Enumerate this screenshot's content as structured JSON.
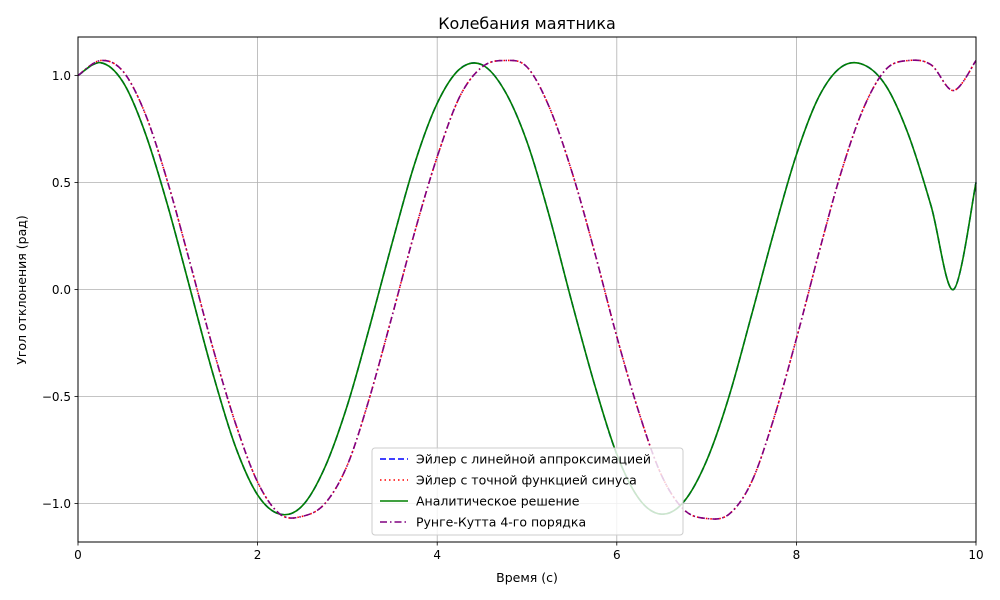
{
  "chart_data": {
    "type": "line",
    "title": "Колебания маятника",
    "xlabel": "Время (с)",
    "ylabel": "Угол отклонения (рад)",
    "xlim": [
      0,
      10
    ],
    "ylim": [
      -1.18,
      1.18
    ],
    "grid": true,
    "legend_position": "bottom-center",
    "x_ticks": [
      0,
      2,
      4,
      6,
      8,
      10
    ],
    "x_tick_labels": [
      "0",
      "2",
      "4",
      "6",
      "8",
      "10"
    ],
    "y_ticks": [
      1.0,
      0.5,
      0.0,
      -0.5,
      -1.0
    ],
    "y_tick_labels": [
      "1.0",
      "0.5",
      "0.0",
      "−0.5",
      "−1.0"
    ],
    "series": [
      {
        "name": "Эйлер с линейной аппроксимацией",
        "color": "#0000ff",
        "style": "dashed",
        "x": [
          0,
          0.25,
          0.5,
          0.75,
          1,
          1.25,
          1.5,
          1.75,
          2,
          2.25,
          2.5,
          2.75,
          3,
          3.25,
          3.5,
          3.75,
          4,
          4.25,
          4.5,
          4.75,
          5,
          5.25,
          5.5,
          5.75,
          6,
          6.25,
          6.5,
          6.75,
          7,
          7.25,
          7.5,
          7.75,
          8,
          8.25,
          8.5,
          8.75,
          9,
          9.25,
          9.5,
          9.75,
          10
        ],
        "y": [
          1.0,
          1.06,
          0.97,
          0.73,
          0.39,
          0.0,
          -0.39,
          -0.73,
          -0.96,
          -1.05,
          -1.01,
          -0.83,
          -0.54,
          -0.17,
          0.22,
          0.59,
          0.87,
          1.03,
          1.05,
          0.93,
          0.69,
          0.34,
          -0.06,
          -0.44,
          -0.77,
          -0.98,
          -1.05,
          -0.99,
          -0.8,
          -0.5,
          -0.12,
          0.27,
          0.63,
          0.9,
          1.04,
          1.05,
          0.95,
          0.72,
          0.39,
          0.0,
          0.5
        ]
      },
      {
        "name": "Эйлер с точной функцией синуса",
        "color": "#ff0000",
        "style": "dotted",
        "x": [
          0,
          0.25,
          0.5,
          0.75,
          1,
          1.25,
          1.5,
          1.75,
          2,
          2.25,
          2.5,
          2.75,
          3,
          3.25,
          3.5,
          3.75,
          4,
          4.25,
          4.5,
          4.75,
          5,
          5.25,
          5.5,
          5.75,
          6,
          6.25,
          6.5,
          6.75,
          7,
          7.25,
          7.5,
          7.75,
          8,
          8.25,
          8.5,
          8.75,
          9,
          9.25,
          9.5,
          9.75,
          10
        ],
        "y": [
          1.0,
          1.07,
          1.02,
          0.82,
          0.5,
          0.12,
          -0.27,
          -0.62,
          -0.9,
          -1.05,
          -1.06,
          -1.0,
          -0.82,
          -0.5,
          -0.12,
          0.27,
          0.62,
          0.9,
          1.04,
          1.07,
          1.04,
          0.85,
          0.55,
          0.18,
          -0.22,
          -0.58,
          -0.87,
          -1.03,
          -1.07,
          -1.05,
          -0.9,
          -0.6,
          -0.23,
          0.17,
          0.55,
          0.85,
          1.03,
          1.07,
          1.05,
          0.93,
          1.07
        ]
      },
      {
        "name": "Аналитическое решение",
        "color": "#008000",
        "style": "solid",
        "x": [
          0,
          0.25,
          0.5,
          0.75,
          1,
          1.25,
          1.5,
          1.75,
          2,
          2.25,
          2.5,
          2.75,
          3,
          3.25,
          3.5,
          3.75,
          4,
          4.25,
          4.5,
          4.75,
          5,
          5.25,
          5.5,
          5.75,
          6,
          6.25,
          6.5,
          6.75,
          7,
          7.25,
          7.5,
          7.75,
          8,
          8.25,
          8.5,
          8.75,
          9,
          9.25,
          9.5,
          9.75,
          10
        ],
        "y": [
          1.0,
          1.06,
          0.97,
          0.73,
          0.39,
          0.0,
          -0.39,
          -0.73,
          -0.96,
          -1.05,
          -1.01,
          -0.83,
          -0.54,
          -0.17,
          0.22,
          0.59,
          0.87,
          1.03,
          1.05,
          0.93,
          0.69,
          0.34,
          -0.06,
          -0.44,
          -0.77,
          -0.98,
          -1.05,
          -0.99,
          -0.8,
          -0.5,
          -0.12,
          0.27,
          0.63,
          0.9,
          1.04,
          1.05,
          0.95,
          0.72,
          0.39,
          0.0,
          0.5
        ]
      },
      {
        "name": "Рунге-Кутта 4-го порядка",
        "color": "#800080",
        "style": "dashdot",
        "x": [
          0,
          0.25,
          0.5,
          0.75,
          1,
          1.25,
          1.5,
          1.75,
          2,
          2.25,
          2.5,
          2.75,
          3,
          3.25,
          3.5,
          3.75,
          4,
          4.25,
          4.5,
          4.75,
          5,
          5.25,
          5.5,
          5.75,
          6,
          6.25,
          6.5,
          6.75,
          7,
          7.25,
          7.5,
          7.75,
          8,
          8.25,
          8.5,
          8.75,
          9,
          9.25,
          9.5,
          9.75,
          10
        ],
        "y": [
          1.0,
          1.07,
          1.02,
          0.82,
          0.5,
          0.12,
          -0.27,
          -0.62,
          -0.9,
          -1.05,
          -1.06,
          -1.0,
          -0.82,
          -0.5,
          -0.12,
          0.27,
          0.62,
          0.9,
          1.04,
          1.07,
          1.04,
          0.85,
          0.55,
          0.18,
          -0.22,
          -0.58,
          -0.87,
          -1.03,
          -1.07,
          -1.05,
          -0.9,
          -0.6,
          -0.23,
          0.17,
          0.55,
          0.85,
          1.03,
          1.07,
          1.05,
          0.93,
          1.07
        ]
      }
    ]
  }
}
